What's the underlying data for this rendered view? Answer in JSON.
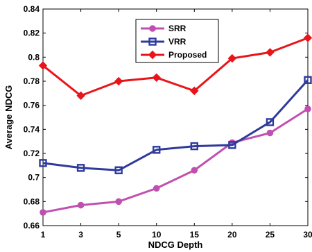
{
  "chart_data": {
    "type": "line",
    "title": "",
    "xlabel": "NDCG Depth",
    "ylabel": "Average NDCG",
    "categories": [
      "1",
      "3",
      "5",
      "10",
      "15",
      "20",
      "25",
      "30"
    ],
    "ylim": [
      0.66,
      0.84
    ],
    "yticks": [
      "0.66",
      "0.68",
      "0.7",
      "0.72",
      "0.74",
      "0.76",
      "0.78",
      "0.8",
      "0.82",
      "0.84"
    ],
    "grid": false,
    "legend_position": "top-center",
    "series": [
      {
        "name": "SRR",
        "color": "#c050b0",
        "marker": "circle",
        "values": [
          0.671,
          0.677,
          0.68,
          0.691,
          0.706,
          0.729,
          0.737,
          0.757
        ]
      },
      {
        "name": "VRR",
        "color": "#2e3a9c",
        "marker": "square",
        "values": [
          0.712,
          0.708,
          0.706,
          0.723,
          0.726,
          0.727,
          0.746,
          0.781
        ]
      },
      {
        "name": "Proposed",
        "color": "#e8151a",
        "marker": "diamond",
        "values": [
          0.793,
          0.768,
          0.78,
          0.783,
          0.772,
          0.799,
          0.804,
          0.816
        ]
      }
    ]
  }
}
